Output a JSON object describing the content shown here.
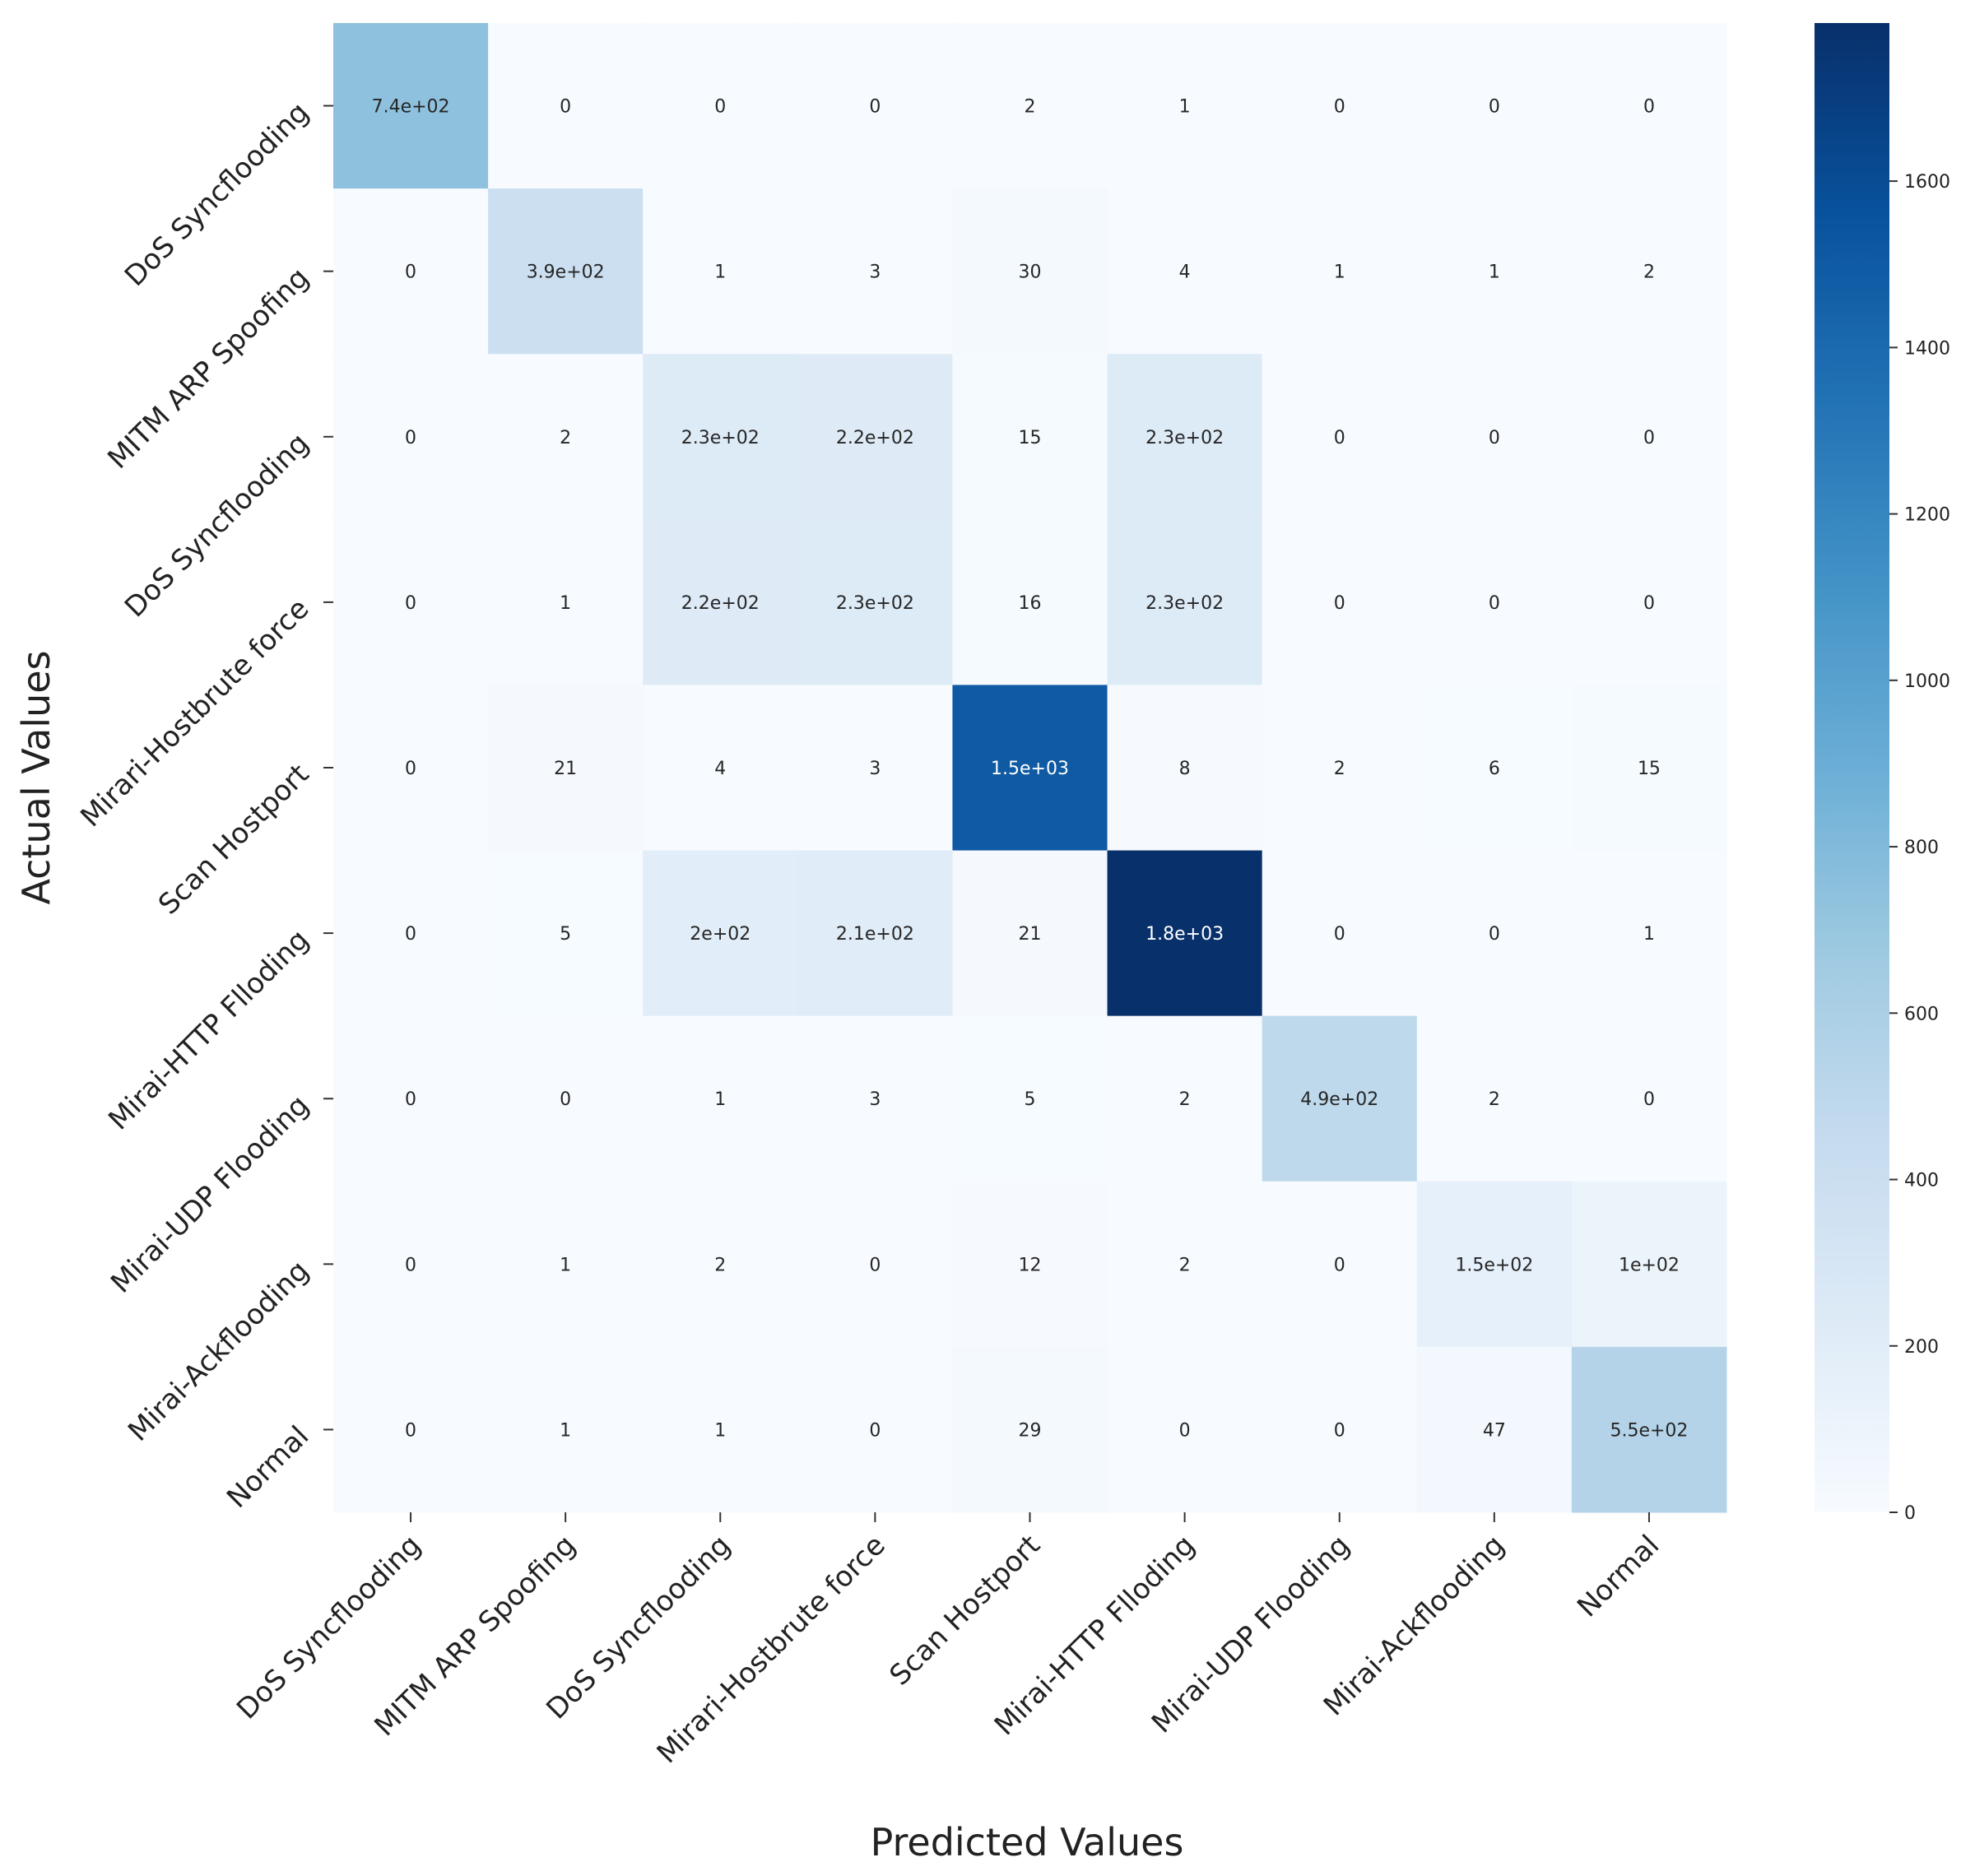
{
  "chart_data": {
    "type": "heatmap",
    "title": "",
    "xlabel": "Predicted Values",
    "ylabel": "Actual Values",
    "x_categories": [
      "DoS Syncflooding",
      "MITM ARP Spoofing",
      "DoS Syncflooding",
      "Mirari-Hostbrute force",
      "Scan Hostport",
      "Mirai-HTTP Flloding",
      "Mirai-UDP Flooding",
      "Mirai-Ackflooding",
      "Normal"
    ],
    "y_categories": [
      "DoS Syncflooding",
      "MITM ARP Spoofing",
      "DoS Syncflooding",
      "Mirari-Hostbrute force",
      "Scan Hostport",
      "Mirai-HTTP Flloding",
      "Mirai-UDP Flooding",
      "Mirai-Ackflooding",
      "Normal"
    ],
    "values": [
      [
        740,
        0,
        0,
        0,
        2,
        1,
        0,
        0,
        0
      ],
      [
        0,
        390,
        1,
        3,
        30,
        4,
        1,
        1,
        2
      ],
      [
        0,
        2,
        230,
        220,
        15,
        230,
        0,
        0,
        0
      ],
      [
        0,
        1,
        220,
        230,
        16,
        230,
        0,
        0,
        0
      ],
      [
        0,
        21,
        4,
        3,
        1500,
        8,
        2,
        6,
        15
      ],
      [
        0,
        5,
        200,
        210,
        21,
        1800,
        0,
        0,
        1
      ],
      [
        0,
        0,
        1,
        3,
        5,
        2,
        490,
        2,
        0
      ],
      [
        0,
        1,
        2,
        0,
        12,
        2,
        0,
        150,
        100
      ],
      [
        0,
        1,
        1,
        0,
        29,
        0,
        0,
        47,
        550
      ]
    ],
    "labels": [
      [
        "7.4e+02",
        "0",
        "0",
        "0",
        "2",
        "1",
        "0",
        "0",
        "0"
      ],
      [
        "0",
        "3.9e+02",
        "1",
        "3",
        "30",
        "4",
        "1",
        "1",
        "2"
      ],
      [
        "0",
        "2",
        "2.3e+02",
        "2.2e+02",
        "15",
        "2.3e+02",
        "0",
        "0",
        "0"
      ],
      [
        "0",
        "1",
        "2.2e+02",
        "2.3e+02",
        "16",
        "2.3e+02",
        "0",
        "0",
        "0"
      ],
      [
        "0",
        "21",
        "4",
        "3",
        "1.5e+03",
        "8",
        "2",
        "6",
        "15"
      ],
      [
        "0",
        "5",
        "2e+02",
        "2.1e+02",
        "21",
        "1.8e+03",
        "0",
        "0",
        "1"
      ],
      [
        "0",
        "0",
        "1",
        "3",
        "5",
        "2",
        "4.9e+02",
        "2",
        "0"
      ],
      [
        "0",
        "1",
        "2",
        "0",
        "12",
        "2",
        "0",
        "1.5e+02",
        "1e+02"
      ],
      [
        "0",
        "1",
        "1",
        "0",
        "29",
        "0",
        "0",
        "47",
        "5.5e+02"
      ]
    ],
    "colorbar": {
      "min": 0,
      "max": 1790,
      "ticks": [
        0,
        200,
        400,
        600,
        800,
        1000,
        1200,
        1400,
        1600
      ],
      "tick_labels": [
        "0",
        "200",
        "400",
        "600",
        "800",
        "1000",
        "1200",
        "1400",
        "1600"
      ]
    },
    "colormap": "Blues",
    "colors": {
      "low": "#f7fbff",
      "high": "#08306b",
      "dark_text": "#262626",
      "light_text": "#ffffff"
    }
  }
}
